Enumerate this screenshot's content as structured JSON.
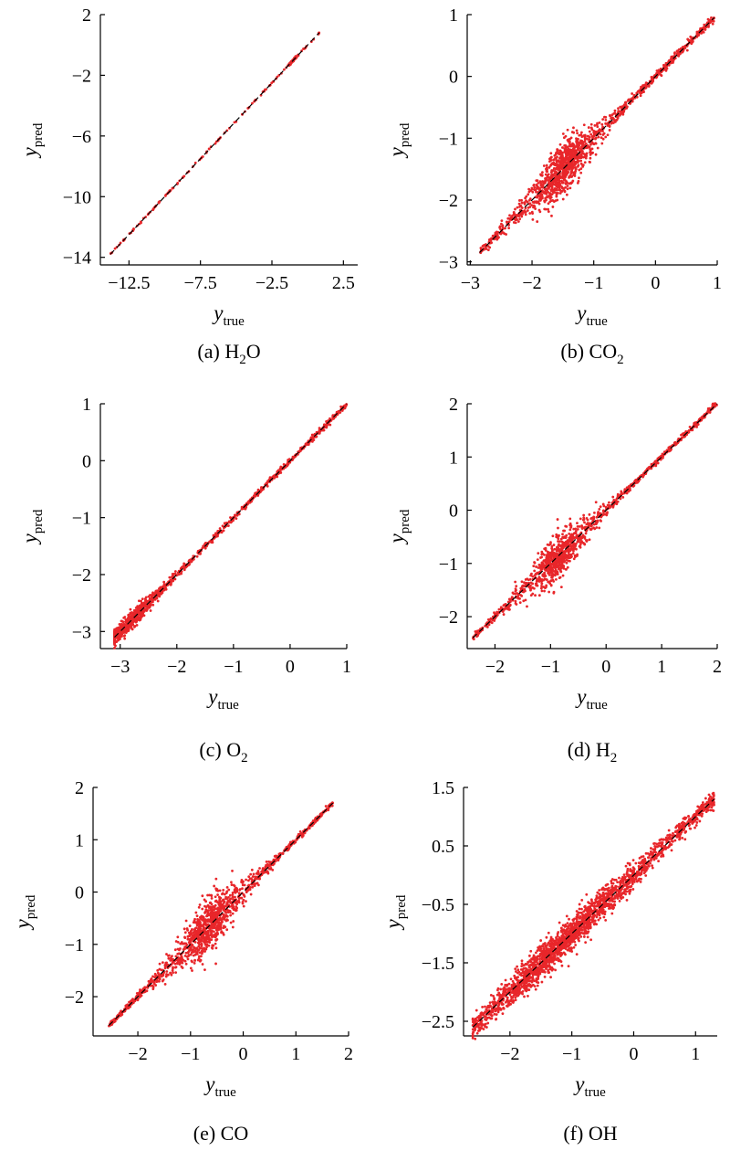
{
  "chart_data": [
    {
      "id": "a",
      "type": "scatter",
      "caption": {
        "prefix": "(a) ",
        "parts": [
          "H",
          "2",
          "O"
        ]
      },
      "xlabel": {
        "main": "y",
        "sub": "true"
      },
      "ylabel": {
        "main": "y",
        "sub": "pred"
      },
      "xlim": [
        -14.5,
        3.5
      ],
      "ylim": [
        -14.5,
        2.0
      ],
      "xticks": [
        -12.5,
        -7.5,
        -2.5,
        2.5
      ],
      "xtick_labels": [
        "−12.5",
        "−7.5",
        "−2.5",
        "2.5"
      ],
      "yticks": [
        -14,
        -10,
        -6,
        -2,
        2
      ],
      "ytick_labels": [
        "−14",
        "−10",
        "−6",
        "−2",
        "2"
      ],
      "range": [
        -13.8,
        0.8
      ],
      "cluster": {
        "center": -1.0,
        "width": 0.3,
        "spread": 0.0
      },
      "series": [
        {
          "type": "scatter",
          "color": "#e8262a",
          "noise": 0.03,
          "points": 200
        },
        {
          "type": "line",
          "style": "dashed",
          "color": "#000000",
          "x": [
            -13.8,
            0.8
          ],
          "y": [
            -13.8,
            0.8
          ]
        }
      ]
    },
    {
      "id": "b",
      "type": "scatter",
      "caption": {
        "prefix": "(b) ",
        "parts": [
          "CO",
          "2",
          ""
        ]
      },
      "xlabel": {
        "main": "y",
        "sub": "true"
      },
      "ylabel": {
        "main": "y",
        "sub": "pred"
      },
      "xlim": [
        -3.05,
        1.0
      ],
      "ylim": [
        -3.05,
        1.0
      ],
      "xticks": [
        -3,
        -2,
        -1,
        0,
        1
      ],
      "xtick_labels": [
        "−3",
        "−2",
        "−1",
        "0",
        "1"
      ],
      "yticks": [
        -3,
        -2,
        -1,
        0,
        1
      ],
      "ytick_labels": [
        "−3",
        "−2",
        "−1",
        "0",
        "1"
      ],
      "range": [
        -2.85,
        0.95
      ],
      "cluster": {
        "center": -1.5,
        "width": 0.45,
        "spread": 0.18
      },
      "series": [
        {
          "type": "scatter",
          "color": "#e8262a",
          "noise": 0.03,
          "points": 1400
        },
        {
          "type": "line",
          "style": "dashed",
          "color": "#000000",
          "x": [
            -2.85,
            0.95
          ],
          "y": [
            -2.85,
            0.95
          ]
        }
      ]
    },
    {
      "id": "c",
      "type": "scatter",
      "caption": {
        "prefix": "(c) ",
        "parts": [
          "O",
          "2",
          ""
        ]
      },
      "xlabel": {
        "main": "y",
        "sub": "true"
      },
      "ylabel": {
        "main": "y",
        "sub": "pred"
      },
      "xlim": [
        -3.35,
        1.0
      ],
      "ylim": [
        -3.3,
        1.0
      ],
      "xticks": [
        -3,
        -2,
        -1,
        0,
        1
      ],
      "xtick_labels": [
        "−3",
        "−2",
        "−1",
        "0",
        "1"
      ],
      "yticks": [
        -3,
        -2,
        -1,
        0,
        1
      ],
      "ytick_labels": [
        "−3",
        "−2",
        "−1",
        "0",
        "1"
      ],
      "range": [
        -3.1,
        1.0
      ],
      "cluster": {
        "center": -2.8,
        "width": 0.5,
        "spread": 0.05
      },
      "series": [
        {
          "type": "scatter",
          "color": "#e8262a",
          "noise": 0.025,
          "points": 1100
        },
        {
          "type": "line",
          "style": "dashed",
          "color": "#000000",
          "x": [
            -3.1,
            1.0
          ],
          "y": [
            -3.1,
            1.0
          ]
        }
      ]
    },
    {
      "id": "d",
      "type": "scatter",
      "caption": {
        "prefix": "(d) ",
        "parts": [
          "H",
          "2",
          ""
        ]
      },
      "xlabel": {
        "main": "y",
        "sub": "true"
      },
      "ylabel": {
        "main": "y",
        "sub": "pred"
      },
      "xlim": [
        -2.5,
        2.0
      ],
      "ylim": [
        -2.6,
        2.0
      ],
      "xticks": [
        -2,
        -1,
        0,
        1,
        2
      ],
      "xtick_labels": [
        "−2",
        "−1",
        "0",
        "1",
        "2"
      ],
      "yticks": [
        -2,
        -1,
        0,
        1,
        2
      ],
      "ytick_labels": [
        "−2",
        "−1",
        "0",
        "1",
        "2"
      ],
      "range": [
        -2.4,
        2.0
      ],
      "cluster": {
        "center": -0.9,
        "width": 0.5,
        "spread": 0.18
      },
      "series": [
        {
          "type": "scatter",
          "color": "#e8262a",
          "noise": 0.025,
          "points": 1200
        },
        {
          "type": "line",
          "style": "dashed",
          "color": "#000000",
          "x": [
            -2.4,
            2.0
          ],
          "y": [
            -2.4,
            2.0
          ]
        }
      ]
    },
    {
      "id": "e",
      "type": "scatter",
      "caption": {
        "prefix": "(e) ",
        "parts": [
          "CO",
          "",
          ""
        ]
      },
      "xlabel": {
        "main": "y",
        "sub": "true"
      },
      "ylabel": {
        "main": "y",
        "sub": "pred"
      },
      "xlim": [
        -2.85,
        2.0
      ],
      "ylim": [
        -2.75,
        2.0
      ],
      "xticks": [
        -2,
        -1,
        0,
        1,
        2
      ],
      "xtick_labels": [
        "−2",
        "−1",
        "0",
        "1",
        "2"
      ],
      "yticks": [
        -2,
        -1,
        0,
        1,
        2
      ],
      "ytick_labels": [
        "−2",
        "−1",
        "0",
        "1",
        "2"
      ],
      "range": [
        -2.55,
        1.7
      ],
      "cluster": {
        "center": -0.65,
        "width": 0.55,
        "spread": 0.22
      },
      "series": [
        {
          "type": "scatter",
          "color": "#e8262a",
          "noise": 0.025,
          "points": 1300
        },
        {
          "type": "line",
          "style": "dashed",
          "color": "#000000",
          "x": [
            -2.55,
            1.7
          ],
          "y": [
            -2.55,
            1.7
          ]
        }
      ]
    },
    {
      "id": "f",
      "type": "scatter",
      "caption": {
        "prefix": "(f) ",
        "parts": [
          "OH",
          "",
          ""
        ]
      },
      "xlabel": {
        "main": "y",
        "sub": "true"
      },
      "ylabel": {
        "main": "y",
        "sub": "pred"
      },
      "xlim": [
        -2.75,
        1.35
      ],
      "ylim": [
        -2.75,
        1.5
      ],
      "xticks": [
        -2,
        -1,
        0,
        1
      ],
      "xtick_labels": [
        "−2",
        "−1",
        "0",
        "1"
      ],
      "yticks": [
        -2.5,
        -1.5,
        -0.5,
        0.5,
        1.5
      ],
      "ytick_labels": [
        "−2.5",
        "−1.5",
        "−0.5",
        "0.5",
        "1.5"
      ],
      "range": [
        -2.6,
        1.3
      ],
      "cluster": {
        "center": -1.2,
        "width": 1.2,
        "spread": 0.08
      },
      "series": [
        {
          "type": "scatter",
          "color": "#e8262a",
          "noise": 0.06,
          "points": 2200
        },
        {
          "type": "line",
          "style": "dashed",
          "color": "#000000",
          "x": [
            -2.6,
            1.3
          ],
          "y": [
            -2.6,
            1.3
          ]
        }
      ]
    }
  ]
}
